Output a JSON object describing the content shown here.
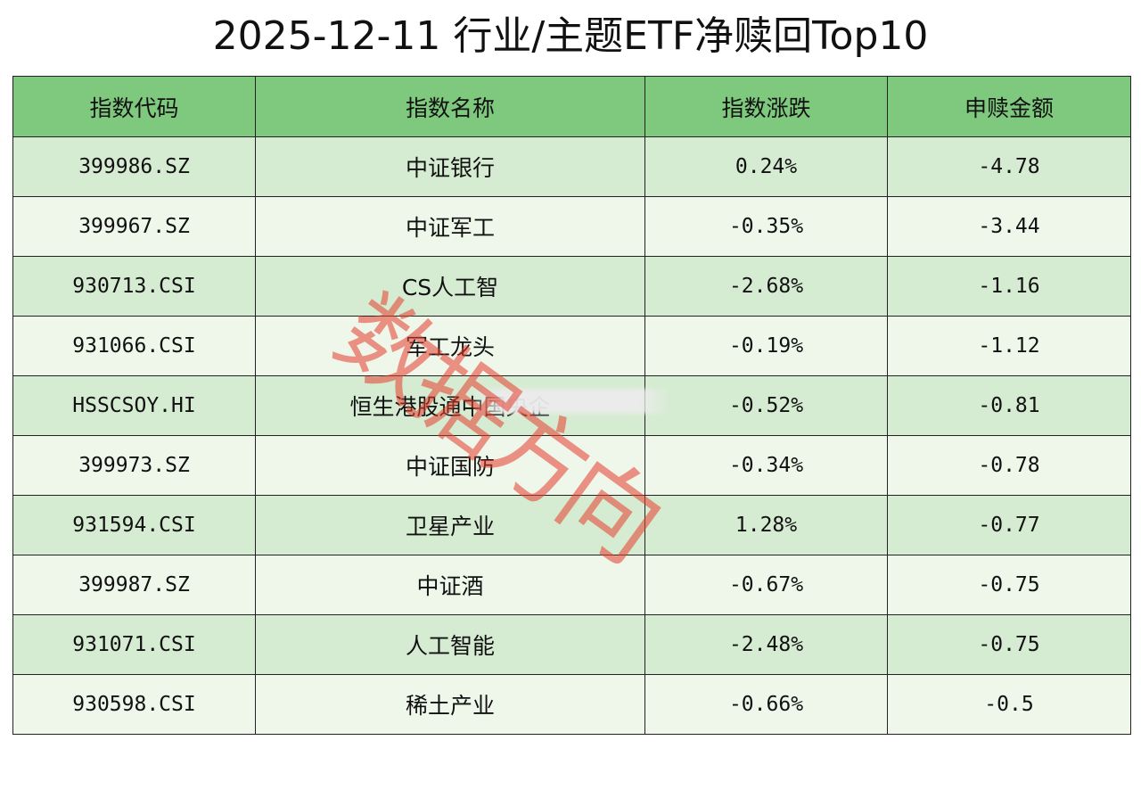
{
  "title": "2025-12-11 行业/主题ETF净赎回Top10",
  "colors": {
    "header_bg": "#7ec97e",
    "row_odd_bg": "#d6ecd2",
    "row_even_bg": "#eef7ea",
    "border": "#222222",
    "watermark": "#e63c2d"
  },
  "table": {
    "headers": {
      "code": "指数代码",
      "name": "指数名称",
      "change": "指数涨跌",
      "amount": "申赎金额"
    },
    "rows": [
      {
        "code": "399986.SZ",
        "name": "中证银行",
        "change": "0.24%",
        "amount": "-4.78"
      },
      {
        "code": "399967.SZ",
        "name": "中证军工",
        "change": "-0.35%",
        "amount": "-3.44"
      },
      {
        "code": "930713.CSI",
        "name": "CS人工智",
        "change": "-2.68%",
        "amount": "-1.16"
      },
      {
        "code": "931066.CSI",
        "name": "军工龙头",
        "change": "-0.19%",
        "amount": "-1.12"
      },
      {
        "code": "HSSCSOY.HI",
        "name": "恒生港股通中国央企",
        "change": "-0.52%",
        "amount": "-0.81"
      },
      {
        "code": "399973.SZ",
        "name": "中证国防",
        "change": "-0.34%",
        "amount": "-0.78"
      },
      {
        "code": "931594.CSI",
        "name": "卫星产业",
        "change": "1.28%",
        "amount": "-0.77"
      },
      {
        "code": "399987.SZ",
        "name": "中证酒",
        "change": "-0.67%",
        "amount": "-0.75"
      },
      {
        "code": "931071.CSI",
        "name": "人工智能",
        "change": "-2.48%",
        "amount": "-0.75"
      },
      {
        "code": "930598.CSI",
        "name": "稀土产业",
        "change": "-0.66%",
        "amount": "-0.5"
      }
    ]
  },
  "watermark": "数据方向"
}
